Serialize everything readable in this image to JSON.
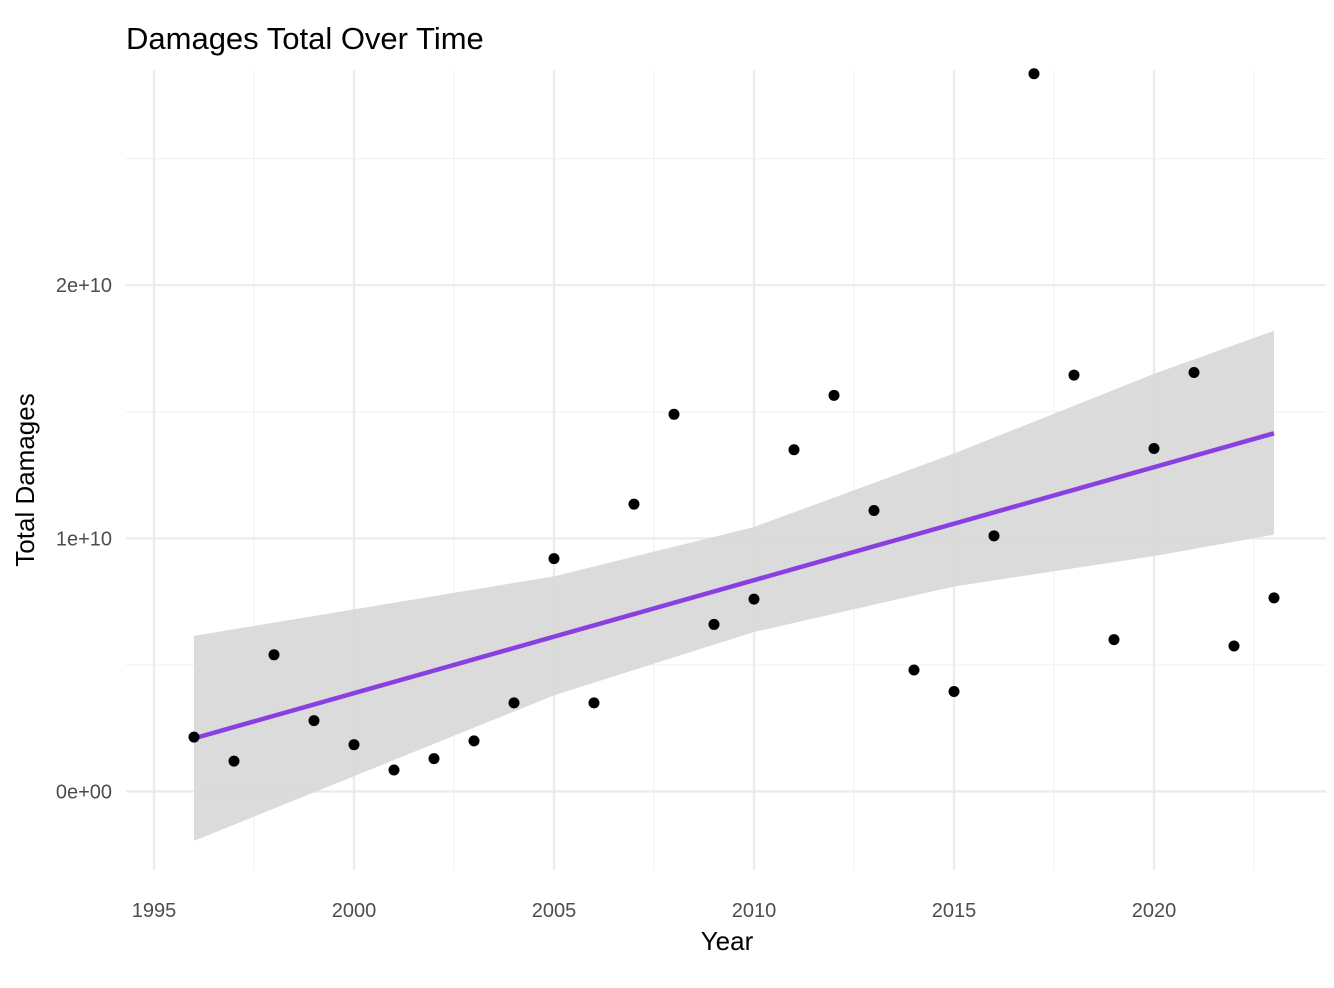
{
  "chart_data": {
    "type": "scatter",
    "title": "Damages Total Over Time",
    "xlabel": "Year",
    "ylabel": "Total Damages",
    "xlim": [
      1994.3,
      2024.3
    ],
    "ylim": [
      -3100000000.0,
      28500000000.0
    ],
    "x_ticks": [
      1995,
      2000,
      2005,
      2010,
      2015,
      2020
    ],
    "x_tick_labels": [
      "1995",
      "2000",
      "2005",
      "2010",
      "2015",
      "2020"
    ],
    "y_ticks": [
      0,
      10000000000,
      20000000000
    ],
    "y_tick_labels": [
      "0e+00",
      "1e+10",
      "2e+10"
    ],
    "grid": true,
    "points": [
      {
        "x": 1996,
        "y": 2150000000
      },
      {
        "x": 1997,
        "y": 1200000000
      },
      {
        "x": 1998,
        "y": 5400000000
      },
      {
        "x": 1999,
        "y": 2800000000
      },
      {
        "x": 2000,
        "y": 1850000000
      },
      {
        "x": 2001,
        "y": 850000000
      },
      {
        "x": 2002,
        "y": 1300000000
      },
      {
        "x": 2003,
        "y": 2000000000
      },
      {
        "x": 2004,
        "y": 3500000000
      },
      {
        "x": 2005,
        "y": 9200000000
      },
      {
        "x": 2006,
        "y": 3500000000
      },
      {
        "x": 2007,
        "y": 11350000000
      },
      {
        "x": 2008,
        "y": 14900000000
      },
      {
        "x": 2009,
        "y": 6600000000
      },
      {
        "x": 2010,
        "y": 7600000000
      },
      {
        "x": 2011,
        "y": 13500000000
      },
      {
        "x": 2012,
        "y": 15650000000
      },
      {
        "x": 2013,
        "y": 11100000000
      },
      {
        "x": 2014,
        "y": 4800000000
      },
      {
        "x": 2015,
        "y": 3950000000
      },
      {
        "x": 2016,
        "y": 10100000000
      },
      {
        "x": 2017,
        "y": 28350000000
      },
      {
        "x": 2018,
        "y": 16450000000
      },
      {
        "x": 2019,
        "y": 6000000000
      },
      {
        "x": 2020,
        "y": 13550000000
      },
      {
        "x": 2021,
        "y": 16550000000
      },
      {
        "x": 2022,
        "y": 5750000000
      },
      {
        "x": 2023,
        "y": 7650000000
      }
    ],
    "trend_line": {
      "x": [
        1996,
        2023
      ],
      "y": [
        2100000000,
        14150000000
      ],
      "color": "#8a3fe0"
    },
    "confidence_band": {
      "x": [
        1996,
        2005,
        2010,
        2015,
        2020,
        2023
      ],
      "upper": [
        6150000000,
        8500000000,
        10450000000,
        13350000000,
        16500000000,
        18200000000
      ],
      "lower": [
        -1950000000,
        3800000000,
        6300000000,
        8100000000,
        9300000000,
        10150000000
      ],
      "color": "#d9d9d9"
    },
    "point_color": "#000000"
  }
}
